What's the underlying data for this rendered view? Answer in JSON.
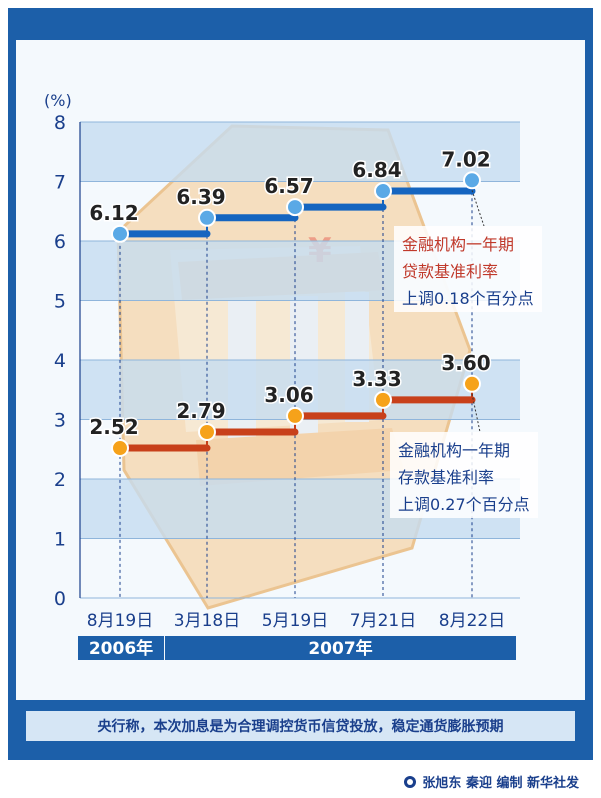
{
  "chart_data": {
    "type": "line",
    "unit_label": "(%)",
    "ylim": [
      0,
      8
    ],
    "yticks": [
      "0",
      "1",
      "2",
      "3",
      "4",
      "5",
      "6",
      "7",
      "8"
    ],
    "categories": [
      "8月19日",
      "3月18日",
      "5月19日",
      "7月21日",
      "8月22日"
    ],
    "year_groups": [
      {
        "label": "2006年",
        "span": [
          0,
          0
        ]
      },
      {
        "label": "2007年",
        "span": [
          1,
          4
        ]
      }
    ],
    "series": [
      {
        "name": "金融机构一年期贷款基准利率",
        "values": [
          6.12,
          6.39,
          6.57,
          6.84,
          7.02
        ],
        "labels": [
          "6.12",
          "6.39",
          "6.57",
          "6.84",
          "7.02"
        ],
        "color": "#1565c0",
        "annotation": [
          "金融机构一年期",
          "贷款基准利率",
          "上调0.18个百分点"
        ]
      },
      {
        "name": "金融机构一年期存款基准利率",
        "values": [
          2.52,
          2.79,
          3.06,
          3.33,
          3.6
        ],
        "labels": [
          "2.52",
          "2.79",
          "3.06",
          "3.33",
          "3.60"
        ],
        "color": "#c8401a",
        "annotation": [
          "金融机构一年期",
          "存款基准利率",
          "上调0.27个百分点"
        ]
      }
    ],
    "step_style": true,
    "grid": "horizontal bands"
  },
  "footer": {
    "caption": "央行称，本次加息是为合理调控货币信贷投放，稳定通货膨胀预期",
    "credit": "张旭东 秦迎 编制  新华社发"
  },
  "colors": {
    "frame": "#1c5fa9",
    "band": "#c6dcf0",
    "label_text": "#222222",
    "loan_annotation_text": "#c0392b",
    "deposit_annotation_text": "#1a3f8c"
  }
}
